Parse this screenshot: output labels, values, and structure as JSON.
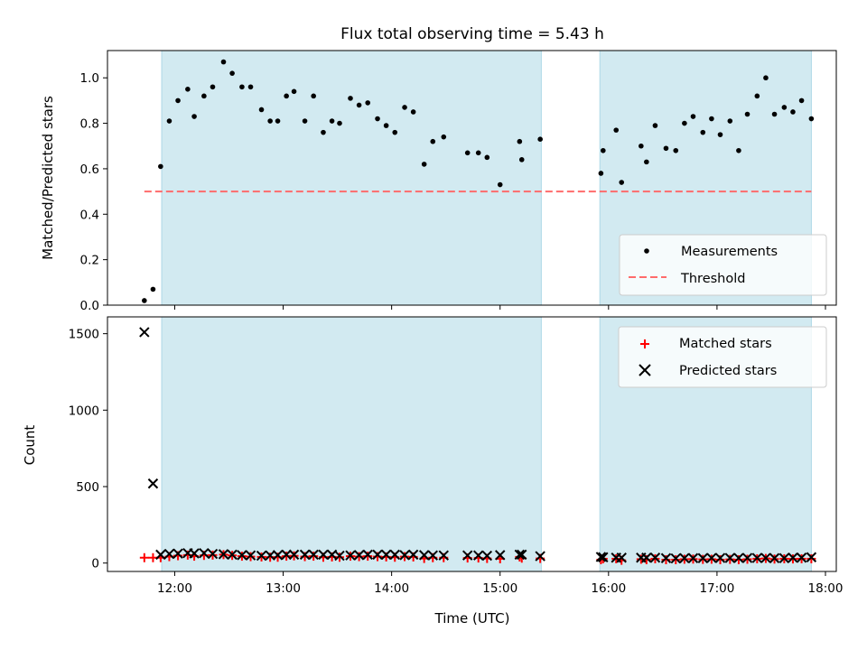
{
  "chart_data": [
    {
      "type": "scatter",
      "title": "Flux total observing time = 5.43 h",
      "xlabel": "",
      "ylabel": "Matched/Predicted stars",
      "xlim": [
        11.38,
        18.1
      ],
      "ylim": [
        0.0,
        1.12
      ],
      "yticks": [
        0.0,
        0.2,
        0.4,
        0.6,
        0.8,
        1.0
      ],
      "ytick_labels": [
        "0.0",
        "0.2",
        "0.4",
        "0.6",
        "0.8",
        "1.0"
      ],
      "grid": false,
      "legend_position": "lower-right",
      "shaded_intervals": [
        [
          11.88,
          15.38
        ],
        [
          15.92,
          17.87
        ]
      ],
      "shade_color": "#add8e6",
      "series": [
        {
          "name": "Measurements",
          "marker": "dot",
          "color": "#000000",
          "x": [
            11.72,
            11.8,
            11.87,
            11.95,
            12.03,
            12.12,
            12.18,
            12.27,
            12.35,
            12.45,
            12.53,
            12.62,
            12.7,
            12.8,
            12.88,
            12.95,
            13.03,
            13.1,
            13.2,
            13.28,
            13.37,
            13.45,
            13.52,
            13.62,
            13.7,
            13.78,
            13.87,
            13.95,
            14.03,
            14.12,
            14.2,
            14.3,
            14.38,
            14.48,
            14.7,
            14.8,
            14.88,
            15.0,
            15.18,
            15.2,
            15.37,
            15.93,
            15.95,
            16.07,
            16.12,
            16.3,
            16.35,
            16.43,
            16.53,
            16.62,
            16.7,
            16.78,
            16.87,
            16.95,
            17.03,
            17.12,
            17.2,
            17.28,
            17.37,
            17.45,
            17.53,
            17.62,
            17.7,
            17.78,
            17.87
          ],
          "y": [
            0.02,
            0.07,
            0.61,
            0.81,
            0.9,
            0.95,
            0.83,
            0.92,
            0.96,
            1.07,
            1.02,
            0.96,
            0.96,
            0.86,
            0.81,
            0.81,
            0.92,
            0.94,
            0.81,
            0.92,
            0.76,
            0.81,
            0.8,
            0.91,
            0.88,
            0.89,
            0.82,
            0.79,
            0.76,
            0.87,
            0.85,
            0.62,
            0.72,
            0.74,
            0.67,
            0.67,
            0.65,
            0.53,
            0.72,
            0.64,
            0.73,
            0.58,
            0.68,
            0.77,
            0.54,
            0.7,
            0.63,
            0.79,
            0.69,
            0.68,
            0.8,
            0.83,
            0.76,
            0.82,
            0.75,
            0.81,
            0.68,
            0.84,
            0.92,
            1.0,
            0.84,
            0.87,
            0.85,
            0.9,
            0.82
          ]
        },
        {
          "name": "Threshold",
          "marker": "dashed-line",
          "color": "#ff6b6b",
          "x": [
            11.72,
            17.87
          ],
          "y": [
            0.5,
            0.5
          ]
        }
      ]
    },
    {
      "type": "scatter",
      "title": "",
      "xlabel": "Time (UTC)",
      "ylabel": "Count",
      "xlim": [
        11.38,
        18.1
      ],
      "ylim": [
        -55,
        1610
      ],
      "yticks": [
        0,
        500,
        1000,
        1500
      ],
      "ytick_labels": [
        "0",
        "500",
        "1000",
        "1500"
      ],
      "xticks": [
        12,
        13,
        14,
        15,
        16,
        17,
        18
      ],
      "xtick_labels": [
        "12:00",
        "13:00",
        "14:00",
        "15:00",
        "16:00",
        "17:00",
        "18:00"
      ],
      "grid": false,
      "legend_position": "top-right",
      "shaded_intervals": [
        [
          11.88,
          15.38
        ],
        [
          15.92,
          17.87
        ]
      ],
      "shade_color": "#add8e6",
      "series": [
        {
          "name": "Matched stars",
          "marker": "plus",
          "color": "#ff0000",
          "x": [
            11.72,
            11.8,
            11.87,
            11.95,
            12.03,
            12.12,
            12.18,
            12.27,
            12.35,
            12.45,
            12.53,
            12.62,
            12.7,
            12.8,
            12.88,
            12.95,
            13.03,
            13.1,
            13.2,
            13.28,
            13.37,
            13.45,
            13.52,
            13.62,
            13.7,
            13.78,
            13.87,
            13.95,
            14.03,
            14.12,
            14.2,
            14.3,
            14.38,
            14.48,
            14.7,
            14.8,
            14.88,
            15.0,
            15.18,
            15.2,
            15.37,
            15.93,
            15.95,
            16.07,
            16.12,
            16.3,
            16.35,
            16.43,
            16.53,
            16.62,
            16.7,
            16.78,
            16.87,
            16.95,
            17.03,
            17.12,
            17.2,
            17.28,
            17.37,
            17.45,
            17.53,
            17.62,
            17.7,
            17.78,
            17.87
          ],
          "y": [
            35,
            35,
            35,
            42,
            48,
            52,
            45,
            50,
            52,
            55,
            50,
            45,
            42,
            40,
            38,
            38,
            45,
            47,
            42,
            45,
            38,
            40,
            38,
            45,
            42,
            45,
            42,
            40,
            38,
            42,
            40,
            30,
            35,
            35,
            33,
            33,
            30,
            28,
            40,
            32,
            30,
            22,
            28,
            28,
            18,
            25,
            22,
            28,
            22,
            22,
            25,
            26,
            24,
            25,
            22,
            24,
            22,
            25,
            28,
            30,
            26,
            28,
            27,
            28,
            28
          ]
        },
        {
          "name": "Predicted stars",
          "marker": "x",
          "color": "#000000",
          "x": [
            11.72,
            11.8,
            11.87,
            11.95,
            12.03,
            12.12,
            12.18,
            12.27,
            12.35,
            12.45,
            12.53,
            12.62,
            12.7,
            12.8,
            12.88,
            12.95,
            13.03,
            13.1,
            13.2,
            13.28,
            13.37,
            13.45,
            13.52,
            13.62,
            13.7,
            13.78,
            13.87,
            13.95,
            14.03,
            14.12,
            14.2,
            14.3,
            14.38,
            14.48,
            14.7,
            14.8,
            14.88,
            15.0,
            15.18,
            15.2,
            15.37,
            15.93,
            15.95,
            16.07,
            16.12,
            16.3,
            16.35,
            16.43,
            16.53,
            16.62,
            16.7,
            16.78,
            16.87,
            16.95,
            17.03,
            17.12,
            17.2,
            17.28,
            17.37,
            17.45,
            17.53,
            17.62,
            17.7,
            17.78,
            17.87
          ],
          "y": [
            1510,
            520,
            55,
            60,
            62,
            65,
            63,
            65,
            60,
            58,
            55,
            52,
            50,
            48,
            50,
            52,
            55,
            55,
            55,
            55,
            55,
            55,
            48,
            50,
            52,
            55,
            55,
            55,
            55,
            52,
            55,
            52,
            50,
            50,
            50,
            50,
            48,
            52,
            55,
            55,
            45,
            40,
            38,
            35,
            35,
            35,
            35,
            35,
            32,
            30,
            32,
            32,
            32,
            33,
            33,
            33,
            33,
            33,
            33,
            33,
            32,
            32,
            35,
            35,
            38
          ]
        }
      ]
    }
  ]
}
